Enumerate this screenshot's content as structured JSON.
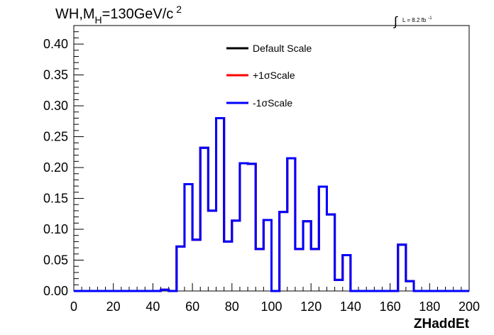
{
  "chart_data": {
    "type": "line",
    "style": "step-histogram",
    "title_parts": {
      "main": "WH,M",
      "sub": "H",
      "rest": "=130GeV/c",
      "sup": "2"
    },
    "annotation": {
      "text": "L = 8.2 fb",
      "sup": "-1"
    },
    "xlabel": "ZHaddEt",
    "ylabel": "",
    "xlim": [
      0,
      200
    ],
    "ylim": [
      0,
      0.43
    ],
    "x_ticks": [
      0,
      20,
      40,
      60,
      80,
      100,
      120,
      140,
      160,
      180,
      200
    ],
    "x_tick_labels": [
      "0",
      "20",
      "40",
      "60",
      "80",
      "100",
      "120",
      "140",
      "160",
      "180",
      "200"
    ],
    "y_ticks": [
      0,
      0.05,
      0.1,
      0.15,
      0.2,
      0.25,
      0.3,
      0.35,
      0.4
    ],
    "y_tick_labels": [
      "0.00",
      "0.05",
      "0.10",
      "0.15",
      "0.20",
      "0.25",
      "0.30",
      "0.35",
      "0.40"
    ],
    "bin_edges": [
      0,
      4,
      8,
      12,
      16,
      20,
      24,
      28,
      32,
      36,
      40,
      44,
      48,
      52,
      56,
      60,
      64,
      68,
      72,
      76,
      80,
      84,
      88,
      92,
      96,
      100,
      104,
      108,
      112,
      116,
      120,
      124,
      128,
      132,
      136,
      140,
      144,
      148,
      152,
      156,
      160,
      164,
      168,
      172,
      176,
      180,
      184,
      188,
      192,
      196,
      200
    ],
    "grid": false,
    "legend": {
      "placement": "top-center"
    },
    "series": [
      {
        "name": "Default Scale",
        "color": "#000000",
        "values": [
          0,
          0,
          0,
          0,
          0,
          0,
          0,
          0,
          0,
          0,
          0,
          0.002,
          0,
          0.072,
          0.173,
          0.083,
          0.232,
          0.13,
          0.28,
          0.08,
          0.114,
          0.207,
          0.206,
          0.068,
          0.115,
          0,
          0.128,
          0.215,
          0.068,
          0.113,
          0.068,
          0.169,
          0.124,
          0.018,
          0.058,
          0,
          0,
          0,
          0,
          0,
          0,
          0.075,
          0.016,
          0,
          0,
          0,
          0,
          0,
          0,
          0
        ]
      },
      {
        "name": "+1σScale",
        "color": "#ff0000",
        "values": [
          0,
          0,
          0,
          0,
          0,
          0,
          0,
          0,
          0,
          0,
          0,
          0.002,
          0,
          0.072,
          0.173,
          0.083,
          0.232,
          0.13,
          0.28,
          0.08,
          0.114,
          0.207,
          0.206,
          0.068,
          0.115,
          0,
          0.128,
          0.215,
          0.068,
          0.113,
          0.068,
          0.169,
          0.124,
          0.018,
          0.058,
          0,
          0,
          0,
          0,
          0,
          0,
          0.075,
          0.016,
          0,
          0,
          0,
          0,
          0,
          0,
          0
        ]
      },
      {
        "name": "-1σScale",
        "color": "#0000ff",
        "values": [
          0,
          0,
          0,
          0,
          0,
          0,
          0,
          0,
          0,
          0,
          0,
          0.002,
          0,
          0.072,
          0.173,
          0.083,
          0.232,
          0.13,
          0.28,
          0.08,
          0.114,
          0.207,
          0.206,
          0.068,
          0.115,
          0,
          0.128,
          0.215,
          0.068,
          0.113,
          0.068,
          0.169,
          0.124,
          0.018,
          0.058,
          0,
          0,
          0,
          0,
          0,
          0,
          0.075,
          0.016,
          0,
          0,
          0,
          0,
          0,
          0,
          0
        ]
      }
    ]
  }
}
